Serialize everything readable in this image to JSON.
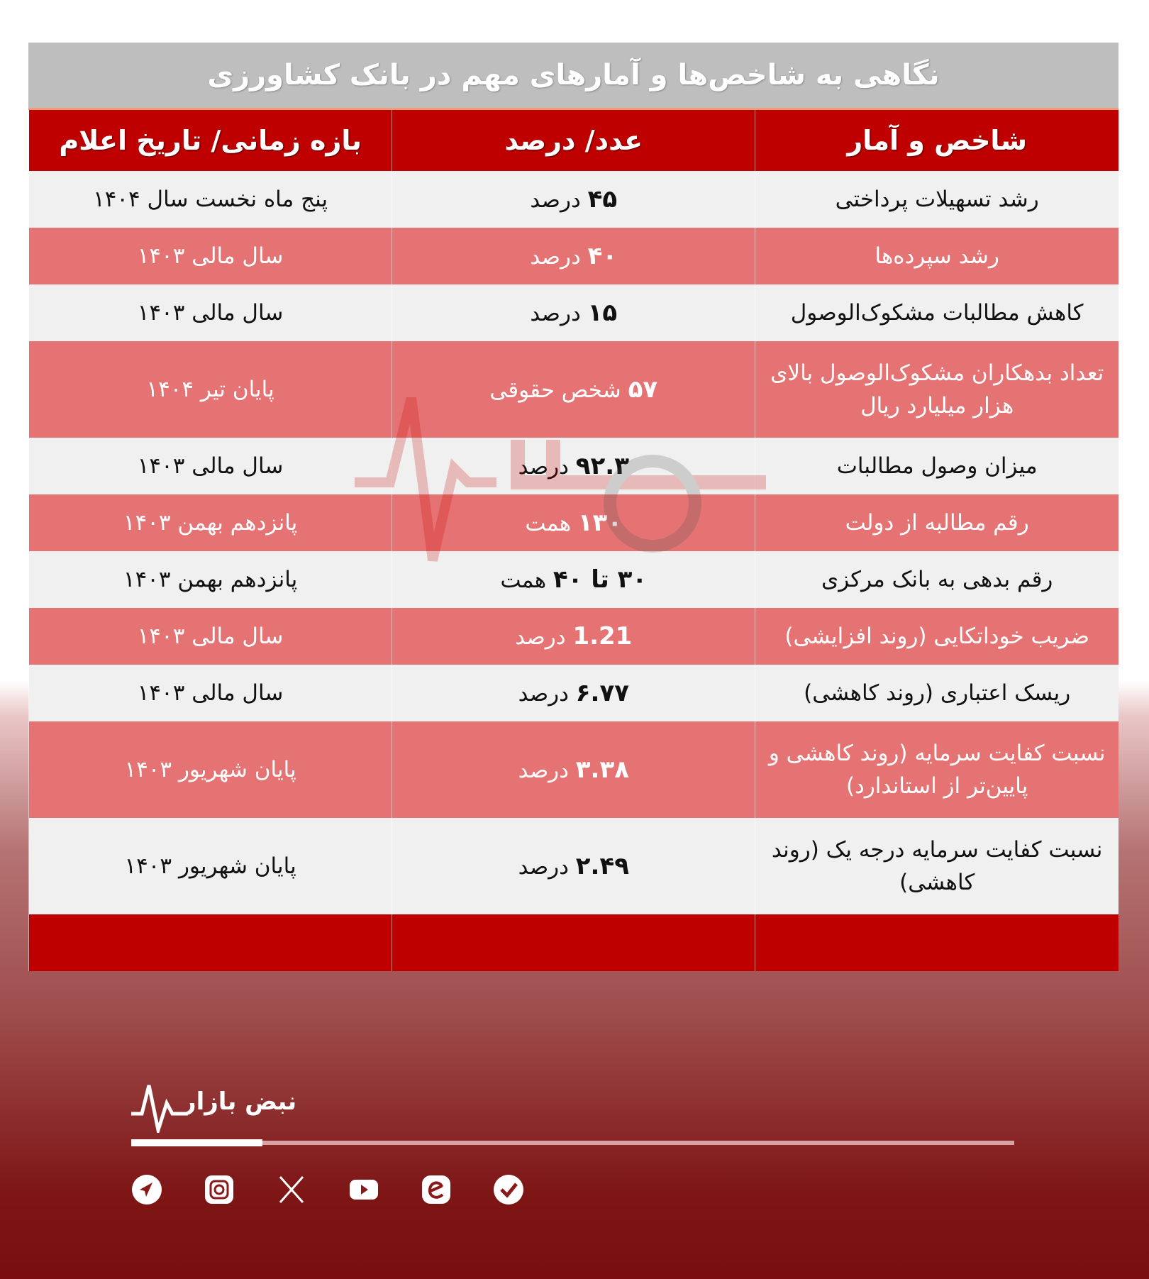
{
  "title": "نگاهی به شاخص‌ها و آمارهای مهم در بانک کشاورزی",
  "headers": [
    "شاخص و آمار",
    "عدد/ درصد",
    "بازه زمانی/ تاریخ اعلام"
  ],
  "rows": [
    {
      "indicator": "رشد تسهیلات پرداختی",
      "num": "۴۵",
      "unit": "درصد",
      "period": "پنج ماه نخست سال ۱۴۰۴"
    },
    {
      "indicator": "رشد سپرده‌ها",
      "num": "۴۰",
      "unit": "درصد",
      "period": "سال مالی ۱۴۰۳"
    },
    {
      "indicator": "کاهش  مطالبات مشکوک‌الوصول",
      "num": "۱۵",
      "unit": "درصد",
      "period": "سال مالی ۱۴۰۳"
    },
    {
      "indicator": "تعداد بدهکاران مشکوک‌الوصول بالای هزار میلیارد ریال",
      "num": "۵۷",
      "unit": "شخص حقوقی",
      "period": "پایان تیر ۱۴۰۴"
    },
    {
      "indicator": "میزان وصول مطالبات",
      "num": "۹۲.۳",
      "unit": "درصد",
      "period": "سال مالی ۱۴۰۳"
    },
    {
      "indicator": "رقم مطالبه از دولت",
      "num": "۱۳۰",
      "unit": "همت",
      "period": "پانزدهم بهمن ۱۴۰۳"
    },
    {
      "indicator": "رقم بدهی به بانک مرکزی",
      "num": "۳۰ تا ۴۰",
      "unit": "همت",
      "period": "پانزدهم بهمن ۱۴۰۳"
    },
    {
      "indicator": "ضریب خوداتکایی (روند افزایشی)",
      "num": "1.21",
      "unit": "درصد",
      "period": "سال مالی ۱۴۰۳"
    },
    {
      "indicator": "ریسک اعتباری (روند کاهشی)",
      "num": "۶.۷۷",
      "unit": "درصد",
      "period": "سال مالی ۱۴۰۳"
    },
    {
      "indicator": "نسبت کفایت سرمایه (روند کاهشی و پایین‌تر از استاندارد)",
      "num": "۳.۳۸",
      "unit": "درصد",
      "period": "پایان شهریور ۱۴۰۳"
    },
    {
      "indicator": "نسبت کفایت سرمایه درجه یک (روند کاهشی)",
      "num": "۲.۴۹",
      "unit": "درصد",
      "period": "پایان شهریور ۱۴۰۳"
    }
  ],
  "brand": "نبض بازار",
  "social": [
    "telegram-icon",
    "instagram-icon",
    "x-icon",
    "youtube-icon",
    "eitaa-icon",
    "bale-icon"
  ],
  "colors": {
    "header": "#bf0000",
    "pink_row": "#e57373",
    "light_row": "#f0f0f0",
    "title_bar": "#bebebe"
  }
}
